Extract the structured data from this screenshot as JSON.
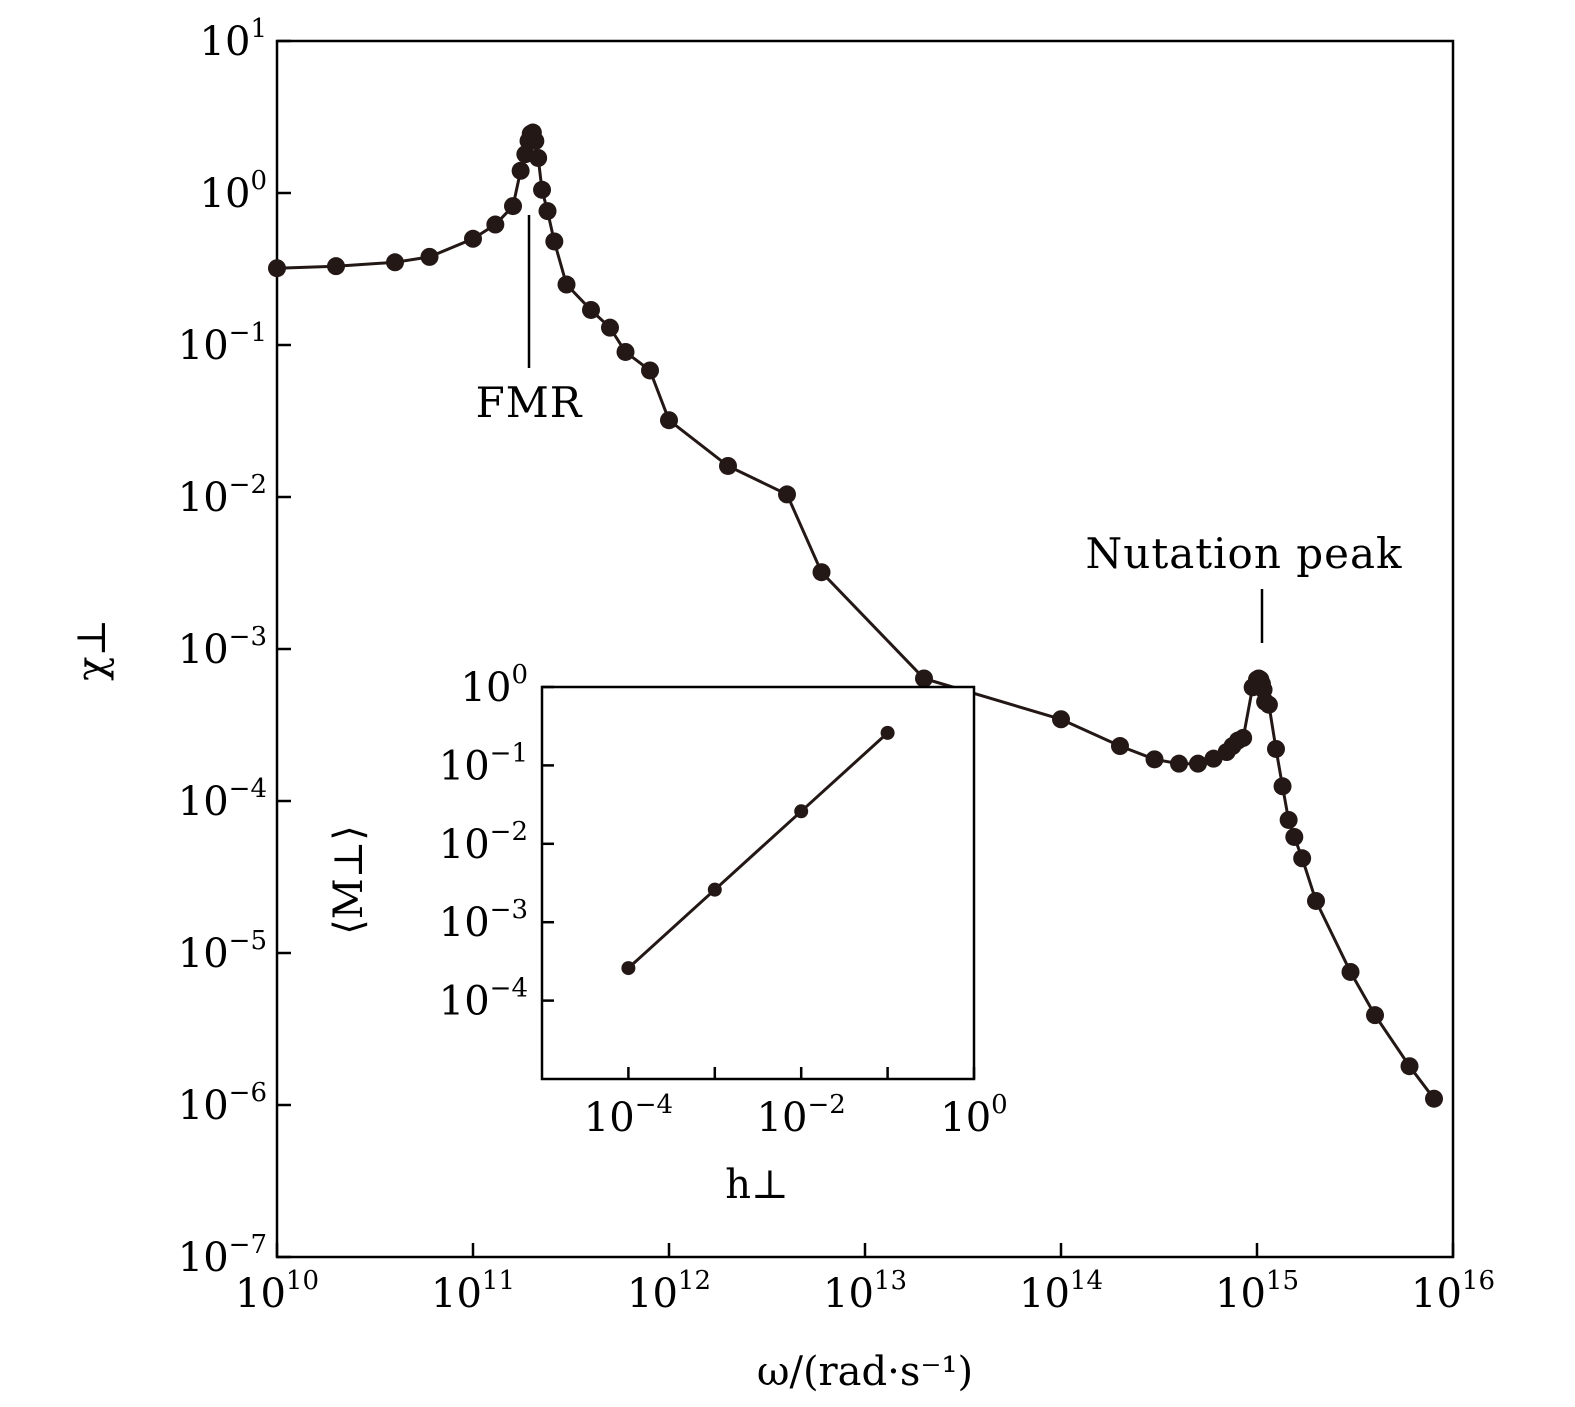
{
  "chart_data": [
    {
      "type": "line",
      "log_x": true,
      "log_y": true,
      "xlabel": "ω/(rad·s⁻¹)",
      "ylabel": "χ⊥",
      "x_ticks": [
        {
          "base": "10",
          "exp": "10"
        },
        {
          "base": "10",
          "exp": "11"
        },
        {
          "base": "10",
          "exp": "12"
        },
        {
          "base": "10",
          "exp": "13"
        },
        {
          "base": "10",
          "exp": "14"
        },
        {
          "base": "10",
          "exp": "15"
        },
        {
          "base": "10",
          "exp": "16"
        }
      ],
      "y_ticks": [
        {
          "base": "10",
          "exp": "1"
        },
        {
          "base": "10",
          "exp": "0"
        },
        {
          "base": "10",
          "exp": "−1"
        },
        {
          "base": "10",
          "exp": "−2"
        },
        {
          "base": "10",
          "exp": "−3"
        },
        {
          "base": "10",
          "exp": "−4"
        },
        {
          "base": "10",
          "exp": "−5"
        },
        {
          "base": "10",
          "exp": "−6"
        },
        {
          "base": "10",
          "exp": "−7"
        }
      ],
      "xlim": [
        10000000000.0,
        1e+16
      ],
      "ylim": [
        1e-07,
        10
      ],
      "grid": false,
      "marker_color": "#231815",
      "x": [
        10000000000.0,
        20000000000.0,
        40000000000.0,
        60000000000.0,
        100000000000.0,
        130000000000.0,
        160000000000.0,
        175000000000.0,
        185000000000.0,
        192000000000.0,
        197000000000.0,
        202000000000.0,
        208000000000.0,
        215000000000.0,
        225000000000.0,
        240000000000.0,
        260000000000.0,
        300000000000.0,
        400000000000.0,
        500000000000.0,
        600000000000.0,
        800000000000.0,
        1000000000000.0,
        2000000000000.0,
        4000000000000.0,
        6000000000000.0,
        20000000000000.0,
        100000000000000.0,
        200000000000000.0,
        300000000000000.0,
        400000000000000.0,
        500000000000000.0,
        600000000000000.0,
        700000000000000.0,
        750000000000000.0,
        800000000000000.0,
        850000000000000.0,
        950000000000000.0,
        1000000000000000.0,
        1020000000000000.0,
        1040000000000000.0,
        1060000000000000.0,
        1080000000000000.0,
        1100000000000000.0,
        1150000000000000.0,
        1250000000000000.0,
        1350000000000000.0,
        1450000000000000.0,
        1550000000000000.0,
        1700000000000000.0,
        2000000000000000.0,
        3000000000000000.0,
        4000000000000000.0,
        6000000000000000.0,
        8000000000000000.0
      ],
      "y": [
        0.32,
        0.33,
        0.35,
        0.38,
        0.5,
        0.62,
        0.82,
        1.4,
        1.8,
        2.2,
        2.45,
        2.5,
        2.2,
        1.7,
        1.05,
        0.76,
        0.48,
        0.25,
        0.17,
        0.13,
        0.09,
        0.068,
        0.032,
        0.016,
        0.0104,
        0.0032,
        0.00064,
        0.000345,
        0.00023,
        0.000188,
        0.000176,
        0.000176,
        0.00019,
        0.00021,
        0.00023,
        0.00025,
        0.00026,
        0.00056,
        0.00063,
        0.00064,
        0.00063,
        0.00059,
        0.00054,
        0.00045,
        0.00043,
        0.00022,
        0.000125,
        7.5e-05,
        5.8e-05,
        4.2e-05,
        2.2e-05,
        7.5e-06,
        3.9e-06,
        1.8e-06,
        1.1e-06
      ],
      "annotations": [
        "FMR",
        "Nutation peak"
      ]
    },
    {
      "type": "line",
      "log_x": true,
      "log_y": true,
      "xlabel": "h⊥",
      "ylabel": "⟨M⊥⟩",
      "x_ticks": [
        {
          "base": "10",
          "exp": "−4"
        },
        {
          "base": "10",
          "exp": "−2"
        },
        {
          "base": "10",
          "exp": "0"
        }
      ],
      "y_ticks": [
        {
          "base": "10",
          "exp": "0"
        },
        {
          "base": "10",
          "exp": "−1"
        },
        {
          "base": "10",
          "exp": "−2"
        },
        {
          "base": "10",
          "exp": "−3"
        },
        {
          "base": "10",
          "exp": "−4"
        }
      ],
      "xlim": [
        1e-05,
        1
      ],
      "ylim": [
        1e-05,
        1
      ],
      "grid": false,
      "x": [
        0.0001,
        0.001,
        0.01,
        0.1
      ],
      "y": [
        0.00026,
        0.0026,
        0.026,
        0.26
      ]
    }
  ]
}
